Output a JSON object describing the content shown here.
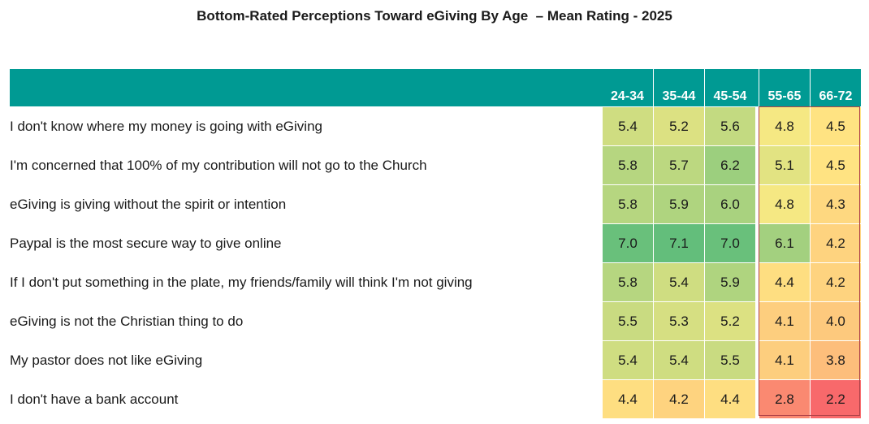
{
  "chart_data": {
    "type": "table",
    "title": "Bottom-Rated Perceptions Toward eGiving By Age  – Mean Rating - 2025",
    "columns": [
      "24-34",
      "35-44",
      "45-54",
      "55-65",
      "66-72"
    ],
    "highlighted_columns": [
      "55-65",
      "66-72"
    ],
    "rows": [
      {
        "label": "I don't know where my money is going with eGiving",
        "values": [
          5.4,
          5.2,
          5.6,
          4.8,
          4.5
        ]
      },
      {
        "label": "I'm concerned that 100% of my contribution will not go to the Church",
        "values": [
          5.8,
          5.7,
          6.2,
          5.1,
          4.5
        ]
      },
      {
        "label": "eGiving is giving without the spirit or intention",
        "values": [
          5.8,
          5.9,
          6.0,
          4.8,
          4.3
        ]
      },
      {
        "label": "Paypal is the most secure way to give online",
        "values": [
          7.0,
          7.1,
          7.0,
          6.1,
          4.2
        ]
      },
      {
        "label": "If I don't put something in the plate, my friends/family will think I'm not giving",
        "values": [
          5.8,
          5.4,
          5.9,
          4.4,
          4.2
        ]
      },
      {
        "label": "eGiving is not the Christian thing to do",
        "values": [
          5.5,
          5.3,
          5.2,
          4.1,
          4.0
        ]
      },
      {
        "label": "My pastor does not like eGiving",
        "values": [
          5.4,
          5.4,
          5.5,
          4.1,
          3.8
        ]
      },
      {
        "label": "I don't have a bank account",
        "values": [
          4.4,
          4.2,
          4.4,
          2.8,
          2.2
        ]
      }
    ],
    "color_scale": {
      "low": "#f8696b",
      "mid": "#ffeb84",
      "high": "#63be7b"
    },
    "colors": {
      "header": "#009a93",
      "highlight_border": "#b0444a"
    }
  }
}
